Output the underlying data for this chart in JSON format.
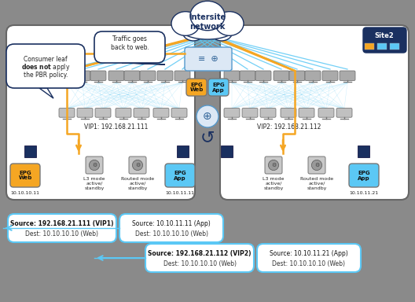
{
  "bg_color": "#8a8a8a",
  "epg_web_color": "#f5a623",
  "epg_app_color": "#5bc8f5",
  "title": "Intersite\nnetwork",
  "vip1_label": "VIP1: 192.168.21.111",
  "vip2_label": "VIP2: 192.168.21.112",
  "speech1_line1": "Consumer leaf",
  "speech1_line2": "does not",
  "speech1_line3": " apply",
  "speech1_line4": "the PBR policy.",
  "speech2_text": "Traffic goes\nback to web.",
  "box1_label1": "Source: 192.168.21.111 (VIP1)",
  "box1_label2": "Dest: 10.10.10.10 (Web)",
  "box2_label1": "Source: 10.10.11.11 (App)",
  "box2_label2": "Dest: 10.10.10.10 (Web)",
  "box3_label1": "Source: 192.168.21.112 (VIP2)",
  "box3_label2": "Dest: 10.10.10.10 (Web)",
  "box4_label1": "Source: 10.10.11.21 (App)",
  "box4_label2": "Dest: 10.10.10.10 (Web)",
  "site2_label": "Site2",
  "addr_web11": "10.10.10.11",
  "addr_app11": "10.10.11.11",
  "addr_app21": "10.10.11.21",
  "cyan_color": "#5bc8f5",
  "orange_color": "#f5a623",
  "dark_blue": "#1a3060",
  "mid_blue": "#336699"
}
